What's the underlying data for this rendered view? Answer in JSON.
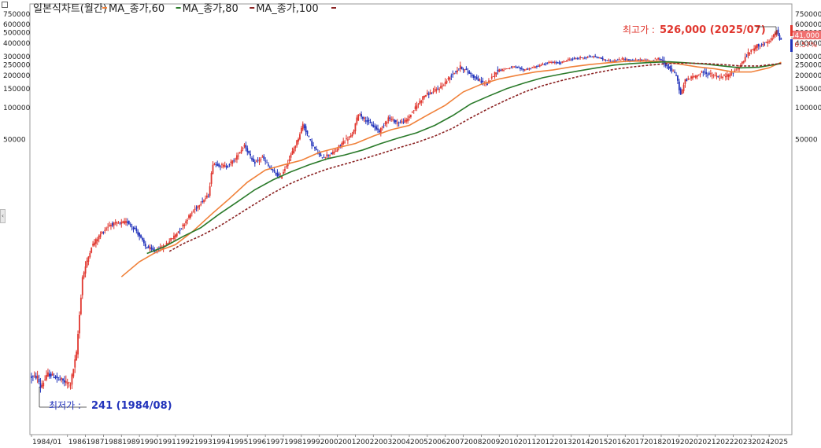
{
  "chart_data": {
    "type": "candlestick",
    "title": "일본식차트(월간)",
    "y_scale": "log",
    "ylim": [
      220,
      800000
    ],
    "y_ticks_right": [
      750000,
      600000,
      500000,
      400000,
      300000,
      250000,
      200000,
      150000,
      100000,
      50000
    ],
    "y_ticks_left": [
      750000,
      600000,
      500000,
      400000,
      300000,
      250000,
      200000,
      150000,
      100000,
      50000
    ],
    "x_start": "1984/01",
    "x_ticks": [
      "1984/01",
      "1986",
      "1987",
      "1988",
      "1989",
      "1990",
      "1991",
      "1992",
      "1993",
      "1994",
      "1995",
      "1996",
      "1997",
      "1998",
      "1999",
      "2000",
      "2001",
      "2002",
      "2003",
      "2004",
      "2005",
      "2006",
      "2007",
      "2008",
      "2009",
      "2010",
      "2011",
      "2012",
      "2013",
      "2014",
      "2015",
      "2016",
      "2017",
      "2018",
      "2019",
      "2020",
      "2021",
      "2022",
      "2023",
      "2024",
      "2025"
    ],
    "price_path": [
      [
        "1984-01",
        300
      ],
      [
        "1984-06",
        300
      ],
      [
        "1984-08",
        241
      ],
      [
        "1985-01",
        320
      ],
      [
        "1985-06",
        300
      ],
      [
        "1985-12",
        270
      ],
      [
        "1986-04",
        260
      ],
      [
        "1986-08",
        500
      ],
      [
        "1986-12",
        2600
      ],
      [
        "1987-06",
        5000
      ],
      [
        "1987-12",
        6500
      ],
      [
        "1988-06",
        8000
      ],
      [
        "1988-12",
        8200
      ],
      [
        "1989-06",
        8500
      ],
      [
        "1989-12",
        7000
      ],
      [
        "1990-06",
        5000
      ],
      [
        "1990-12",
        4500
      ],
      [
        "1991-06",
        5000
      ],
      [
        "1991-12",
        6000
      ],
      [
        "1992-06",
        7500
      ],
      [
        "1992-12",
        10000
      ],
      [
        "1993-06",
        12500
      ],
      [
        "1993-12",
        15000
      ],
      [
        "1994-03",
        30000
      ],
      [
        "1994-12",
        28000
      ],
      [
        "1995-06",
        33000
      ],
      [
        "1995-12",
        45000
      ],
      [
        "1996-06",
        30000
      ],
      [
        "1996-12",
        34000
      ],
      [
        "1997-06",
        26000
      ],
      [
        "1997-12",
        22000
      ],
      [
        "1998-06",
        33000
      ],
      [
        "1998-12",
        52000
      ],
      [
        "1999-03",
        70000
      ],
      [
        "1999-09",
        45000
      ],
      [
        "2000-03",
        34000
      ],
      [
        "2000-12",
        38000
      ],
      [
        "2001-06",
        48000
      ],
      [
        "2001-12",
        55000
      ],
      [
        "2002-04",
        88000
      ],
      [
        "2002-12",
        70000
      ],
      [
        "2003-06",
        60000
      ],
      [
        "2003-12",
        80000
      ],
      [
        "2004-06",
        72000
      ],
      [
        "2004-12",
        75000
      ],
      [
        "2005-06",
        100000
      ],
      [
        "2005-12",
        130000
      ],
      [
        "2006-06",
        140000
      ],
      [
        "2006-12",
        160000
      ],
      [
        "2007-06",
        200000
      ],
      [
        "2007-12",
        240000
      ],
      [
        "2008-06",
        210000
      ],
      [
        "2008-12",
        180000
      ],
      [
        "2009-06",
        165000
      ],
      [
        "2009-12",
        220000
      ],
      [
        "2010-06",
        230000
      ],
      [
        "2010-12",
        240000
      ],
      [
        "2011-06",
        225000
      ],
      [
        "2011-12",
        235000
      ],
      [
        "2012-06",
        250000
      ],
      [
        "2012-12",
        265000
      ],
      [
        "2013-06",
        260000
      ],
      [
        "2013-12",
        280000
      ],
      [
        "2014-06",
        290000
      ],
      [
        "2014-12",
        295000
      ],
      [
        "2015-06",
        300000
      ],
      [
        "2015-12",
        280000
      ],
      [
        "2016-06",
        270000
      ],
      [
        "2016-12",
        285000
      ],
      [
        "2017-06",
        275000
      ],
      [
        "2017-12",
        280000
      ],
      [
        "2018-06",
        270000
      ],
      [
        "2018-12",
        290000
      ],
      [
        "2019-06",
        245000
      ],
      [
        "2019-12",
        200000
      ],
      [
        "2020-03",
        130000
      ],
      [
        "2020-06",
        180000
      ],
      [
        "2020-12",
        195000
      ],
      [
        "2021-06",
        215000
      ],
      [
        "2021-12",
        200000
      ],
      [
        "2022-06",
        190000
      ],
      [
        "2022-12",
        205000
      ],
      [
        "2023-06",
        240000
      ],
      [
        "2023-12",
        320000
      ],
      [
        "2024-06",
        380000
      ],
      [
        "2024-12",
        400000
      ],
      [
        "2025-03",
        420000
      ],
      [
        "2025-07",
        526000
      ],
      [
        "2025-09",
        441000
      ]
    ],
    "series": [
      {
        "name": "MA_종가,60",
        "color": "#f0813a",
        "path": [
          [
            "1989-01",
            2600
          ],
          [
            "1990-01",
            3600
          ],
          [
            "1991-01",
            4500
          ],
          [
            "1992-01",
            5200
          ],
          [
            "1993-01",
            7000
          ],
          [
            "1994-01",
            10000
          ],
          [
            "1995-01",
            14000
          ],
          [
            "1996-01",
            20000
          ],
          [
            "1997-01",
            26000
          ],
          [
            "1998-01",
            29000
          ],
          [
            "1999-01",
            32000
          ],
          [
            "2000-01",
            38000
          ],
          [
            "2001-01",
            42000
          ],
          [
            "2002-01",
            46000
          ],
          [
            "2003-01",
            54000
          ],
          [
            "2004-01",
            62000
          ],
          [
            "2005-01",
            68000
          ],
          [
            "2006-01",
            85000
          ],
          [
            "2007-01",
            105000
          ],
          [
            "2008-01",
            140000
          ],
          [
            "2009-01",
            165000
          ],
          [
            "2010-01",
            185000
          ],
          [
            "2011-01",
            200000
          ],
          [
            "2012-01",
            215000
          ],
          [
            "2013-01",
            225000
          ],
          [
            "2014-01",
            240000
          ],
          [
            "2015-01",
            252000
          ],
          [
            "2016-01",
            262000
          ],
          [
            "2017-01",
            270000
          ],
          [
            "2018-01",
            272000
          ],
          [
            "2019-01",
            270000
          ],
          [
            "2020-01",
            255000
          ],
          [
            "2021-01",
            240000
          ],
          [
            "2022-01",
            230000
          ],
          [
            "2023-01",
            215000
          ],
          [
            "2024-01",
            215000
          ],
          [
            "2025-01",
            235000
          ],
          [
            "2025-09",
            265000
          ]
        ]
      },
      {
        "name": "MA_종가,80",
        "color": "#2a7a2a",
        "path": [
          [
            "1990-06",
            4300
          ],
          [
            "1991-06",
            5000
          ],
          [
            "1992-06",
            6200
          ],
          [
            "1993-06",
            7500
          ],
          [
            "1994-06",
            10000
          ],
          [
            "1995-06",
            13000
          ],
          [
            "1996-06",
            17000
          ],
          [
            "1997-06",
            21000
          ],
          [
            "1998-06",
            25000
          ],
          [
            "1999-06",
            29000
          ],
          [
            "2000-06",
            33000
          ],
          [
            "2001-06",
            36000
          ],
          [
            "2002-06",
            40000
          ],
          [
            "2003-06",
            46000
          ],
          [
            "2004-06",
            52000
          ],
          [
            "2005-06",
            58000
          ],
          [
            "2006-06",
            68000
          ],
          [
            "2007-06",
            84000
          ],
          [
            "2008-06",
            108000
          ],
          [
            "2009-06",
            128000
          ],
          [
            "2010-06",
            150000
          ],
          [
            "2011-06",
            170000
          ],
          [
            "2012-06",
            190000
          ],
          [
            "2013-06",
            205000
          ],
          [
            "2014-06",
            220000
          ],
          [
            "2015-06",
            235000
          ],
          [
            "2016-06",
            250000
          ],
          [
            "2017-06",
            258000
          ],
          [
            "2018-06",
            264000
          ],
          [
            "2019-06",
            268000
          ],
          [
            "2020-06",
            262000
          ],
          [
            "2021-06",
            255000
          ],
          [
            "2022-06",
            245000
          ],
          [
            "2023-06",
            235000
          ],
          [
            "2024-06",
            238000
          ],
          [
            "2025-09",
            258000
          ]
        ]
      },
      {
        "name": "MA_종가,100",
        "color": "#8b2323",
        "path": [
          [
            "1991-09",
            4500
          ],
          [
            "1992-06",
            5300
          ],
          [
            "1993-06",
            6300
          ],
          [
            "1994-06",
            7700
          ],
          [
            "1995-06",
            9800
          ],
          [
            "1996-06",
            12500
          ],
          [
            "1997-06",
            15800
          ],
          [
            "1998-06",
            19500
          ],
          [
            "1999-06",
            23000
          ],
          [
            "2000-06",
            26500
          ],
          [
            "2001-06",
            29500
          ],
          [
            "2002-06",
            33000
          ],
          [
            "2003-06",
            37000
          ],
          [
            "2004-06",
            42000
          ],
          [
            "2005-06",
            47000
          ],
          [
            "2006-06",
            54000
          ],
          [
            "2007-06",
            64000
          ],
          [
            "2008-06",
            80000
          ],
          [
            "2009-06",
            98000
          ],
          [
            "2010-06",
            118000
          ],
          [
            "2011-06",
            140000
          ],
          [
            "2012-06",
            160000
          ],
          [
            "2013-06",
            178000
          ],
          [
            "2014-06",
            195000
          ],
          [
            "2015-06",
            212000
          ],
          [
            "2016-06",
            228000
          ],
          [
            "2017-06",
            240000
          ],
          [
            "2018-06",
            250000
          ],
          [
            "2019-06",
            258000
          ],
          [
            "2020-06",
            260000
          ],
          [
            "2021-06",
            258000
          ],
          [
            "2022-06",
            252000
          ],
          [
            "2023-06",
            245000
          ],
          [
            "2024-06",
            245000
          ],
          [
            "2025-09",
            258000
          ]
        ]
      }
    ],
    "annotations": {
      "high_label": "최고가 :",
      "high_value": "526,000 (2025/07)",
      "low_label": "최저가 :",
      "low_value": "241 (1984/08)",
      "current_price": "441,000",
      "current_change": "0.57%"
    },
    "colors": {
      "up": "#e0362e",
      "down": "#2233bb",
      "badge": "#f07070"
    }
  }
}
